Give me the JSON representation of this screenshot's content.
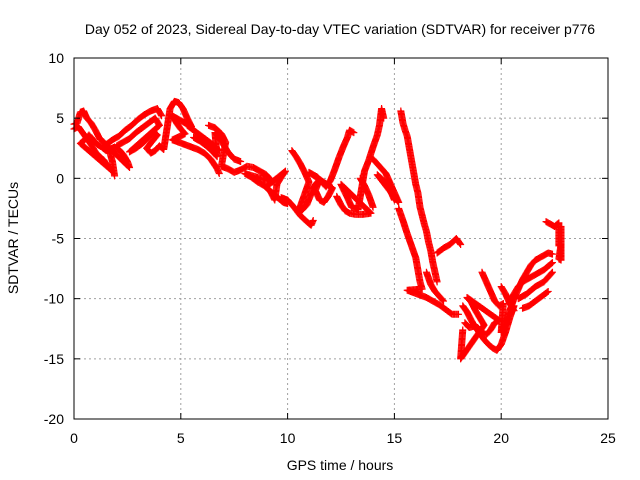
{
  "chart_data": {
    "type": "scatter",
    "title": "Day 052 of 2023, Sidereal Day-to-day VTEC variation (SDTVAR) for receiver p776",
    "xlabel": "GPS time / hours",
    "ylabel": "SDTVAR / TECUs",
    "xlim": [
      0,
      25
    ],
    "ylim": [
      -20,
      10
    ],
    "xticks": [
      0,
      5,
      10,
      15,
      20,
      25
    ],
    "yticks": [
      -20,
      -15,
      -10,
      -5,
      0,
      5,
      10
    ],
    "grid": true,
    "marker": "+",
    "color": "#ff0000",
    "series": [
      {
        "name": "SDTVAR",
        "points": [
          [
            0.0,
            4.5
          ],
          [
            0.15,
            4.6
          ],
          [
            0.3,
            5.5
          ],
          [
            0.45,
            5.6
          ],
          [
            0.6,
            5.0
          ],
          [
            0.8,
            4.6
          ],
          [
            1.0,
            4.0
          ],
          [
            1.2,
            3.3
          ],
          [
            1.4,
            3.0
          ],
          [
            1.6,
            2.6
          ],
          [
            1.8,
            1.4
          ],
          [
            1.9,
            0.2
          ],
          [
            0.0,
            4.1
          ],
          [
            0.2,
            4.3
          ],
          [
            0.4,
            3.8
          ],
          [
            0.6,
            3.3
          ],
          [
            0.8,
            2.8
          ],
          [
            1.0,
            2.2
          ],
          [
            1.2,
            1.8
          ],
          [
            1.4,
            1.5
          ],
          [
            1.6,
            1.0
          ],
          [
            1.8,
            0.6
          ],
          [
            0.3,
            2.9
          ],
          [
            0.5,
            3.2
          ],
          [
            0.7,
            3.6
          ],
          [
            0.9,
            3.2
          ],
          [
            1.1,
            2.8
          ],
          [
            1.3,
            2.6
          ],
          [
            1.5,
            2.3
          ],
          [
            1.9,
            2.6
          ],
          [
            2.1,
            2.4
          ],
          [
            2.3,
            2.0
          ],
          [
            2.5,
            1.4
          ],
          [
            2.6,
            0.9
          ],
          [
            1.5,
            2.8
          ],
          [
            1.8,
            3.2
          ],
          [
            2.1,
            3.5
          ],
          [
            2.4,
            4.0
          ],
          [
            2.7,
            4.4
          ],
          [
            3.0,
            4.9
          ],
          [
            3.3,
            5.3
          ],
          [
            3.6,
            5.6
          ],
          [
            3.9,
            5.8
          ],
          [
            4.1,
            5.2
          ],
          [
            2.0,
            2.7
          ],
          [
            2.3,
            3.0
          ],
          [
            2.6,
            3.3
          ],
          [
            2.9,
            3.8
          ],
          [
            3.2,
            4.2
          ],
          [
            3.5,
            4.6
          ],
          [
            3.8,
            5.0
          ],
          [
            4.0,
            4.4
          ],
          [
            2.6,
            2.2
          ],
          [
            2.9,
            2.5
          ],
          [
            3.2,
            2.9
          ],
          [
            3.5,
            3.4
          ],
          [
            3.7,
            3.9
          ],
          [
            3.9,
            3.6
          ],
          [
            3.4,
            2.5
          ],
          [
            3.6,
            2.1
          ],
          [
            3.8,
            2.3
          ],
          [
            4.0,
            2.7
          ],
          [
            4.2,
            2.4
          ],
          [
            4.5,
            5.8
          ],
          [
            4.7,
            6.4
          ],
          [
            4.9,
            6.3
          ],
          [
            5.1,
            5.8
          ],
          [
            5.3,
            5.0
          ],
          [
            5.5,
            4.3
          ],
          [
            4.6,
            5.2
          ],
          [
            4.8,
            4.6
          ],
          [
            5.0,
            4.1
          ],
          [
            5.2,
            3.7
          ],
          [
            4.6,
            3.2
          ],
          [
            4.9,
            3.0
          ],
          [
            5.2,
            2.8
          ],
          [
            5.5,
            2.6
          ],
          [
            5.8,
            2.4
          ],
          [
            6.1,
            2.1
          ],
          [
            6.4,
            1.6
          ],
          [
            6.7,
            0.8
          ],
          [
            6.8,
            0.4
          ],
          [
            5.3,
            4.4
          ],
          [
            5.6,
            4.0
          ],
          [
            5.9,
            3.6
          ],
          [
            6.2,
            3.2
          ],
          [
            6.5,
            2.8
          ],
          [
            6.8,
            2.3
          ],
          [
            5.6,
            3.4
          ],
          [
            5.9,
            3.1
          ],
          [
            6.2,
            2.7
          ],
          [
            6.5,
            2.2
          ],
          [
            6.7,
            1.8
          ],
          [
            6.6,
            3.8
          ],
          [
            6.9,
            3.1
          ],
          [
            7.2,
            2.2
          ],
          [
            7.5,
            1.6
          ],
          [
            7.8,
            1.4
          ],
          [
            6.3,
            4.4
          ],
          [
            6.6,
            4.2
          ],
          [
            6.9,
            3.7
          ],
          [
            7.1,
            3.0
          ],
          [
            6.9,
            1.0
          ],
          [
            7.2,
            0.8
          ],
          [
            7.5,
            0.5
          ],
          [
            7.8,
            0.7
          ],
          [
            8.1,
            1.0
          ],
          [
            8.4,
            0.9
          ],
          [
            8.7,
            0.6
          ],
          [
            9.0,
            0.3
          ],
          [
            9.3,
            -0.3
          ],
          [
            8.0,
            0.4
          ],
          [
            8.3,
            0.1
          ],
          [
            8.6,
            -0.3
          ],
          [
            8.9,
            -0.6
          ],
          [
            9.2,
            -1.1
          ],
          [
            9.4,
            -1.8
          ],
          [
            9.5,
            -0.5
          ],
          [
            9.7,
            0.1
          ],
          [
            9.9,
            0.6
          ],
          [
            9.0,
            -0.7
          ],
          [
            9.2,
            -1.1
          ],
          [
            9.4,
            -1.4
          ],
          [
            9.6,
            -1.7
          ],
          [
            9.8,
            -2.0
          ],
          [
            10.0,
            -2.1
          ],
          [
            9.7,
            -1.6
          ],
          [
            10.0,
            -1.8
          ],
          [
            10.3,
            -2.4
          ],
          [
            10.6,
            -3.1
          ],
          [
            10.9,
            -3.6
          ],
          [
            11.1,
            -3.9
          ],
          [
            11.2,
            -3.5
          ],
          [
            10.2,
            2.3
          ],
          [
            10.4,
            1.8
          ],
          [
            10.6,
            1.2
          ],
          [
            10.8,
            0.5
          ],
          [
            11.0,
            -0.3
          ],
          [
            10.5,
            -2.8
          ],
          [
            10.7,
            -2.6
          ],
          [
            10.9,
            -2.2
          ],
          [
            11.1,
            -1.3
          ],
          [
            11.3,
            -0.5
          ],
          [
            11.5,
            -0.1
          ],
          [
            11.3,
            -1.0
          ],
          [
            11.5,
            -1.8
          ],
          [
            11.7,
            -2.0
          ],
          [
            11.9,
            -1.5
          ],
          [
            12.1,
            -0.8
          ],
          [
            11.0,
            0.5
          ],
          [
            11.2,
            0.3
          ],
          [
            11.4,
            0.1
          ],
          [
            11.6,
            -0.3
          ],
          [
            11.8,
            -0.7
          ],
          [
            12.0,
            -0.2
          ],
          [
            12.2,
            0.7
          ],
          [
            12.4,
            1.7
          ],
          [
            12.6,
            2.6
          ],
          [
            12.8,
            3.4
          ],
          [
            12.9,
            4.0
          ],
          [
            13.1,
            3.8
          ],
          [
            12.3,
            -1.5
          ],
          [
            12.5,
            -2.2
          ],
          [
            12.7,
            -2.7
          ],
          [
            12.9,
            -2.9
          ],
          [
            13.2,
            -3.0
          ],
          [
            13.5,
            -3.0
          ],
          [
            13.9,
            -2.9
          ],
          [
            12.5,
            -0.5
          ],
          [
            12.8,
            -1.6
          ],
          [
            13.0,
            -2.4
          ],
          [
            13.3,
            -2.6
          ],
          [
            13.6,
            0.6
          ],
          [
            13.8,
            1.5
          ],
          [
            14.0,
            2.6
          ],
          [
            14.2,
            3.6
          ],
          [
            14.3,
            4.4
          ],
          [
            14.4,
            5.8
          ],
          [
            14.5,
            5.0
          ],
          [
            13.4,
            0.0
          ],
          [
            13.6,
            -0.6
          ],
          [
            13.8,
            -1.4
          ],
          [
            14.0,
            -2.4
          ],
          [
            14.0,
            1.6
          ],
          [
            14.3,
            1.0
          ],
          [
            14.6,
            0.4
          ],
          [
            14.8,
            -0.4
          ],
          [
            15.0,
            -1.2
          ],
          [
            15.2,
            -2.0
          ],
          [
            14.2,
            0.3
          ],
          [
            14.5,
            -0.2
          ],
          [
            14.8,
            -1.0
          ],
          [
            15.0,
            -1.8
          ],
          [
            15.3,
            5.6
          ],
          [
            15.4,
            4.6
          ],
          [
            15.5,
            4.0
          ],
          [
            15.6,
            3.5
          ],
          [
            15.7,
            2.5
          ],
          [
            15.8,
            1.5
          ],
          [
            15.9,
            0.5
          ],
          [
            16.0,
            -0.5
          ],
          [
            16.1,
            -1.2
          ],
          [
            16.2,
            -2.4
          ],
          [
            16.4,
            -3.8
          ],
          [
            16.5,
            -4.4
          ],
          [
            16.6,
            -5.3
          ],
          [
            16.7,
            -6.0
          ],
          [
            16.8,
            -7.0
          ],
          [
            16.9,
            -7.8
          ],
          [
            17.0,
            -8.6
          ],
          [
            15.2,
            -2.5
          ],
          [
            15.4,
            -3.5
          ],
          [
            15.6,
            -4.6
          ],
          [
            15.8,
            -5.6
          ],
          [
            16.0,
            -6.6
          ],
          [
            16.1,
            -7.6
          ],
          [
            16.2,
            -8.6
          ],
          [
            16.3,
            -9.2
          ],
          [
            15.6,
            -9.3
          ],
          [
            15.9,
            -9.5
          ],
          [
            16.2,
            -9.7
          ],
          [
            16.5,
            -9.9
          ],
          [
            16.8,
            -10.2
          ],
          [
            17.1,
            -10.5
          ],
          [
            17.4,
            -10.9
          ],
          [
            17.7,
            -11.3
          ],
          [
            18.0,
            -11.3
          ],
          [
            16.5,
            -7.8
          ],
          [
            16.7,
            -8.8
          ],
          [
            16.9,
            -9.4
          ],
          [
            17.1,
            -9.8
          ],
          [
            17.3,
            -10.2
          ],
          [
            17.0,
            -6.2
          ],
          [
            17.3,
            -5.8
          ],
          [
            17.6,
            -5.5
          ],
          [
            17.9,
            -5.0
          ],
          [
            18.1,
            -5.5
          ],
          [
            18.2,
            -10.6
          ],
          [
            18.4,
            -11.1
          ],
          [
            18.6,
            -11.8
          ],
          [
            18.8,
            -12.4
          ],
          [
            19.0,
            -12.9
          ],
          [
            19.2,
            -13.4
          ],
          [
            19.4,
            -13.8
          ],
          [
            19.6,
            -14.1
          ],
          [
            19.8,
            -14.3
          ],
          [
            20.0,
            -13.8
          ],
          [
            20.2,
            -12.8
          ],
          [
            20.4,
            -11.6
          ],
          [
            20.6,
            -10.6
          ],
          [
            18.3,
            -12.0
          ],
          [
            18.5,
            -12.4
          ],
          [
            18.7,
            -12.3
          ],
          [
            18.9,
            -12.4
          ],
          [
            19.1,
            -12.8
          ],
          [
            19.3,
            -13.0
          ],
          [
            19.5,
            -12.6
          ],
          [
            19.7,
            -12.0
          ],
          [
            19.9,
            -11.8
          ],
          [
            18.4,
            -9.9
          ],
          [
            18.6,
            -10.3
          ],
          [
            18.8,
            -11.0
          ],
          [
            19.0,
            -11.6
          ],
          [
            19.2,
            -12.2
          ],
          [
            18.1,
            -15.0
          ],
          [
            18.2,
            -12.6
          ],
          [
            19.1,
            -7.8
          ],
          [
            19.3,
            -8.6
          ],
          [
            19.5,
            -9.4
          ],
          [
            19.7,
            -10.2
          ],
          [
            19.9,
            -10.6
          ],
          [
            20.1,
            -10.4
          ],
          [
            20.0,
            -12.8
          ],
          [
            20.2,
            -12.0
          ],
          [
            20.4,
            -11.0
          ],
          [
            20.6,
            -10.0
          ],
          [
            20.8,
            -9.2
          ],
          [
            21.0,
            -8.4
          ],
          [
            21.2,
            -7.8
          ],
          [
            21.4,
            -7.2
          ],
          [
            21.6,
            -6.8
          ],
          [
            21.8,
            -6.6
          ],
          [
            22.0,
            -6.4
          ],
          [
            22.2,
            -6.2
          ],
          [
            22.4,
            -6.3
          ],
          [
            20.4,
            -10.2
          ],
          [
            20.6,
            -9.6
          ],
          [
            20.8,
            -9.0
          ],
          [
            21.0,
            -8.6
          ],
          [
            21.2,
            -8.4
          ],
          [
            21.4,
            -8.2
          ],
          [
            21.6,
            -8.0
          ],
          [
            21.8,
            -7.8
          ],
          [
            22.0,
            -7.6
          ],
          [
            22.2,
            -7.3
          ],
          [
            22.4,
            -7.0
          ],
          [
            20.8,
            -10.0
          ],
          [
            21.0,
            -9.8
          ],
          [
            21.2,
            -9.6
          ],
          [
            21.4,
            -9.3
          ],
          [
            21.6,
            -9.0
          ],
          [
            21.8,
            -8.8
          ],
          [
            22.0,
            -8.6
          ],
          [
            22.2,
            -8.2
          ],
          [
            22.4,
            -7.8
          ],
          [
            21.0,
            -10.8
          ],
          [
            21.3,
            -10.6
          ],
          [
            21.6,
            -10.2
          ],
          [
            21.9,
            -9.8
          ],
          [
            22.2,
            -9.4
          ],
          [
            20.0,
            -9.0
          ],
          [
            20.2,
            -9.6
          ],
          [
            20.4,
            -10.4
          ],
          [
            20.6,
            -11.0
          ],
          [
            22.1,
            -3.6
          ],
          [
            22.3,
            -3.8
          ],
          [
            22.5,
            -4.0
          ],
          [
            22.7,
            -3.7
          ],
          [
            22.7,
            -5.6
          ],
          [
            22.8,
            -5.5
          ],
          [
            22.7,
            -6.7
          ],
          [
            22.8,
            -6.8
          ],
          [
            22.8,
            -4.0
          ]
        ]
      }
    ]
  }
}
